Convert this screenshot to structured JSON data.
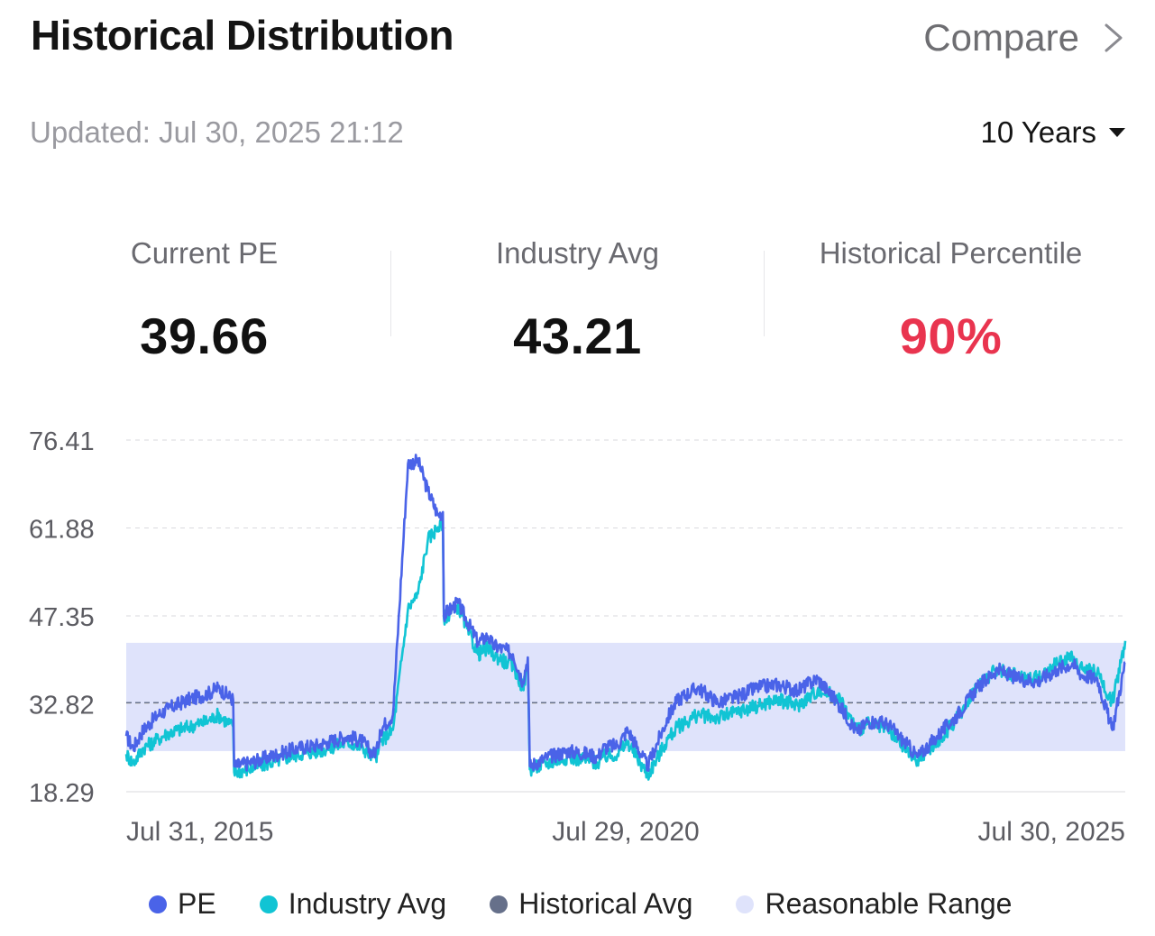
{
  "header": {
    "title": "Historical Distribution",
    "compare_label": "Compare"
  },
  "meta": {
    "updated_label": "Updated:",
    "updated_value": "Jul 30, 2025 21:12",
    "period": "10 Years"
  },
  "stats": [
    {
      "label": "Current PE",
      "value": "39.66"
    },
    {
      "label": "Industry Avg",
      "value": "43.21"
    },
    {
      "label": "Historical Percentile",
      "value": "90%"
    }
  ],
  "colors": {
    "pe": "#4a63e8",
    "industry": "#11c4d4",
    "historical_avg": "#66708a",
    "range": "#dfe3fb",
    "percentile": "#e9344f"
  },
  "legend": [
    "PE",
    "Industry Avg",
    "Historical Avg",
    "Reasonable Range"
  ],
  "chart_data": {
    "type": "line",
    "y_ticks": [
      "76.41",
      "61.88",
      "47.35",
      "32.82",
      "18.29"
    ],
    "ylim": [
      18.29,
      76.41
    ],
    "x_ticks": [
      "Jul 31, 2015",
      "Jul 29, 2020",
      "Jul 30, 2025"
    ],
    "x_range": [
      "2015-07-31",
      "2025-07-30"
    ],
    "historical_avg": 33.0,
    "reasonable_range": [
      25.0,
      42.9
    ],
    "series": [
      {
        "name": "PE",
        "x": [
          2015.58,
          2015.65,
          2015.75,
          2015.9,
          2016.0,
          2016.2,
          2016.4,
          2016.5,
          2016.65,
          2016.66,
          2016.8,
          2017.0,
          2017.3,
          2017.5,
          2017.6,
          2017.8,
          2017.95,
          2018.05,
          2018.1,
          2018.12,
          2018.25,
          2018.4,
          2018.5,
          2018.6,
          2018.7,
          2018.75,
          2018.76,
          2018.9,
          2019.1,
          2019.2,
          2019.25,
          2019.4,
          2019.45,
          2019.55,
          2019.6,
          2019.62,
          2019.8,
          2020.0,
          2020.2,
          2020.3,
          2020.35,
          2020.5,
          2020.6,
          2020.8,
          2021.0,
          2021.1,
          2021.3,
          2021.5,
          2021.7,
          2021.9,
          2022.1,
          2022.3,
          2022.5,
          2022.7,
          2022.9,
          2023.0,
          2023.2,
          2023.4,
          2023.5,
          2023.7,
          2023.9,
          2024.1,
          2024.3,
          2024.5,
          2024.7,
          2024.9,
          2025.05,
          2025.15,
          2025.3,
          2025.45,
          2025.58
        ],
        "values": [
          27.5,
          25.5,
          28.5,
          31.0,
          32.0,
          33.5,
          34.5,
          35.5,
          33.5,
          22.5,
          23.0,
          24.0,
          25.5,
          26.0,
          26.5,
          27.5,
          26.5,
          24.5,
          25.5,
          28.5,
          31.0,
          72.5,
          73.0,
          68.0,
          64.0,
          64.5,
          47.5,
          49.5,
          43.0,
          44.0,
          42.5,
          41.5,
          41.0,
          36.5,
          40.5,
          22.5,
          24.0,
          25.0,
          24.5,
          24.0,
          25.5,
          26.0,
          28.5,
          22.5,
          30.5,
          33.5,
          35.5,
          33.0,
          34.0,
          35.5,
          36.0,
          35.0,
          37.0,
          33.0,
          28.0,
          30.0,
          29.5,
          26.0,
          24.0,
          27.5,
          31.0,
          35.5,
          38.5,
          37.0,
          36.5,
          38.5,
          39.5,
          37.5,
          37.0,
          28.5,
          39.66
        ]
      },
      {
        "name": "Industry Avg",
        "x": [
          2015.58,
          2015.65,
          2015.75,
          2015.9,
          2016.0,
          2016.2,
          2016.4,
          2016.5,
          2016.65,
          2016.66,
          2016.8,
          2017.0,
          2017.3,
          2017.5,
          2017.6,
          2017.8,
          2017.95,
          2018.05,
          2018.1,
          2018.12,
          2018.25,
          2018.4,
          2018.5,
          2018.6,
          2018.7,
          2018.75,
          2018.76,
          2018.9,
          2019.1,
          2019.2,
          2019.25,
          2019.4,
          2019.45,
          2019.55,
          2019.6,
          2019.62,
          2019.8,
          2020.0,
          2020.2,
          2020.3,
          2020.35,
          2020.5,
          2020.6,
          2020.8,
          2021.0,
          2021.1,
          2021.3,
          2021.5,
          2021.7,
          2021.9,
          2022.1,
          2022.3,
          2022.5,
          2022.7,
          2022.9,
          2023.0,
          2023.2,
          2023.4,
          2023.5,
          2023.7,
          2023.9,
          2024.1,
          2024.3,
          2024.5,
          2024.7,
          2024.9,
          2025.05,
          2025.15,
          2025.3,
          2025.45,
          2025.58
        ],
        "values": [
          24.5,
          23.0,
          25.5,
          27.0,
          28.0,
          29.0,
          30.0,
          31.0,
          29.0,
          21.5,
          22.0,
          23.0,
          24.5,
          25.0,
          25.5,
          26.5,
          25.5,
          24.0,
          24.5,
          26.5,
          28.5,
          48.5,
          51.0,
          60.0,
          62.0,
          62.0,
          47.0,
          49.0,
          41.0,
          42.0,
          41.0,
          39.5,
          39.0,
          35.5,
          39.0,
          22.0,
          23.0,
          24.0,
          23.5,
          23.0,
          24.0,
          24.5,
          26.5,
          21.0,
          27.0,
          29.0,
          31.0,
          30.5,
          31.5,
          32.5,
          33.5,
          32.5,
          35.0,
          34.0,
          28.5,
          29.5,
          28.5,
          25.0,
          23.5,
          26.5,
          30.5,
          36.0,
          38.5,
          37.5,
          37.0,
          39.5,
          40.5,
          38.5,
          38.0,
          33.0,
          43.21
        ]
      }
    ]
  }
}
